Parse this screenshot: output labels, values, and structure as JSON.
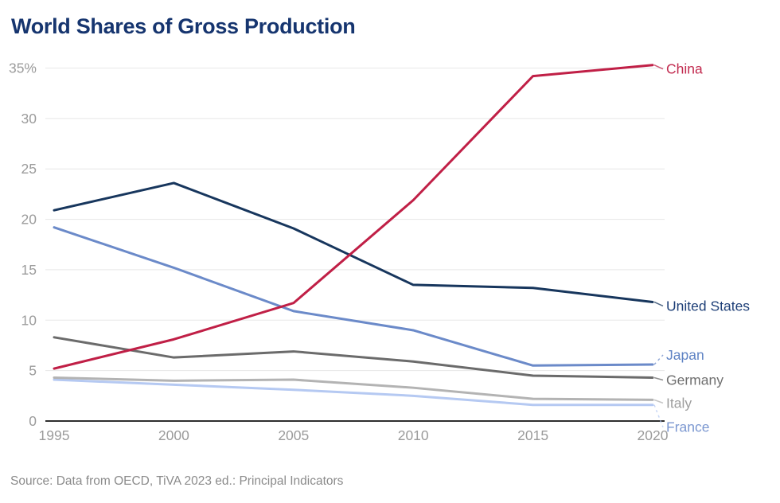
{
  "header": {
    "title": "World Shares of Gross Production"
  },
  "source": {
    "text": "Source: Data from OECD, TiVA 2023 ed.: Principal Indicators"
  },
  "colors": {
    "title": "#16356f",
    "axis": "#2f2f2f",
    "gridline": "#e7e7e7",
    "tick_label": "#9b9b9b",
    "source_text": "#8b8b8b",
    "background": "#ffffff"
  },
  "chart_data": {
    "type": "line",
    "title": "World Shares of Gross Production",
    "xlabel": "",
    "ylabel": "",
    "x": [
      1995,
      2000,
      2005,
      2010,
      2015,
      2020
    ],
    "x_tick_labels": [
      "1995",
      "2000",
      "2005",
      "2010",
      "2015",
      "2020"
    ],
    "yticks": [
      0,
      5,
      10,
      15,
      20,
      25,
      30,
      35
    ],
    "ytick_labels": [
      "0",
      "5",
      "10",
      "15",
      "20",
      "25",
      "30",
      "35%"
    ],
    "ylim": [
      0,
      35
    ],
    "grid": true,
    "legend_position": "end-of-line-labels-right",
    "series": [
      {
        "name": "China",
        "color": "#c01f46",
        "label_color": "#c22c50",
        "values": [
          5.2,
          8.1,
          11.7,
          21.9,
          34.2,
          35.3
        ],
        "label_dy": 5,
        "leader": "solid"
      },
      {
        "name": "United States",
        "color": "#17365d",
        "label_color": "#1f4078",
        "values": [
          20.9,
          23.6,
          19.1,
          13.5,
          13.2,
          11.8
        ],
        "label_dy": 5,
        "leader": "solid"
      },
      {
        "name": "Japan",
        "color": "#6b8ac9",
        "label_color": "#5f83c4",
        "values": [
          19.2,
          15.2,
          10.9,
          9.0,
          5.5,
          5.6
        ],
        "label_dy": -12,
        "leader": "dashed"
      },
      {
        "name": "Germany",
        "color": "#6b6b6b",
        "label_color": "#6f6f6f",
        "values": [
          8.3,
          6.3,
          6.9,
          5.9,
          4.5,
          4.3
        ],
        "label_dy": 3,
        "leader": "solid"
      },
      {
        "name": "Italy",
        "color": "#b3b3b3",
        "label_color": "#9d9d9d",
        "values": [
          4.3,
          4.0,
          4.1,
          3.3,
          2.2,
          2.1
        ],
        "label_dy": 4,
        "leader": "solid"
      },
      {
        "name": "France",
        "color": "#b5c9f2",
        "label_color": "#7b97d0",
        "values": [
          4.1,
          3.6,
          3.1,
          2.5,
          1.6,
          1.6
        ],
        "label_dy": 28,
        "leader": "dashed"
      }
    ]
  }
}
